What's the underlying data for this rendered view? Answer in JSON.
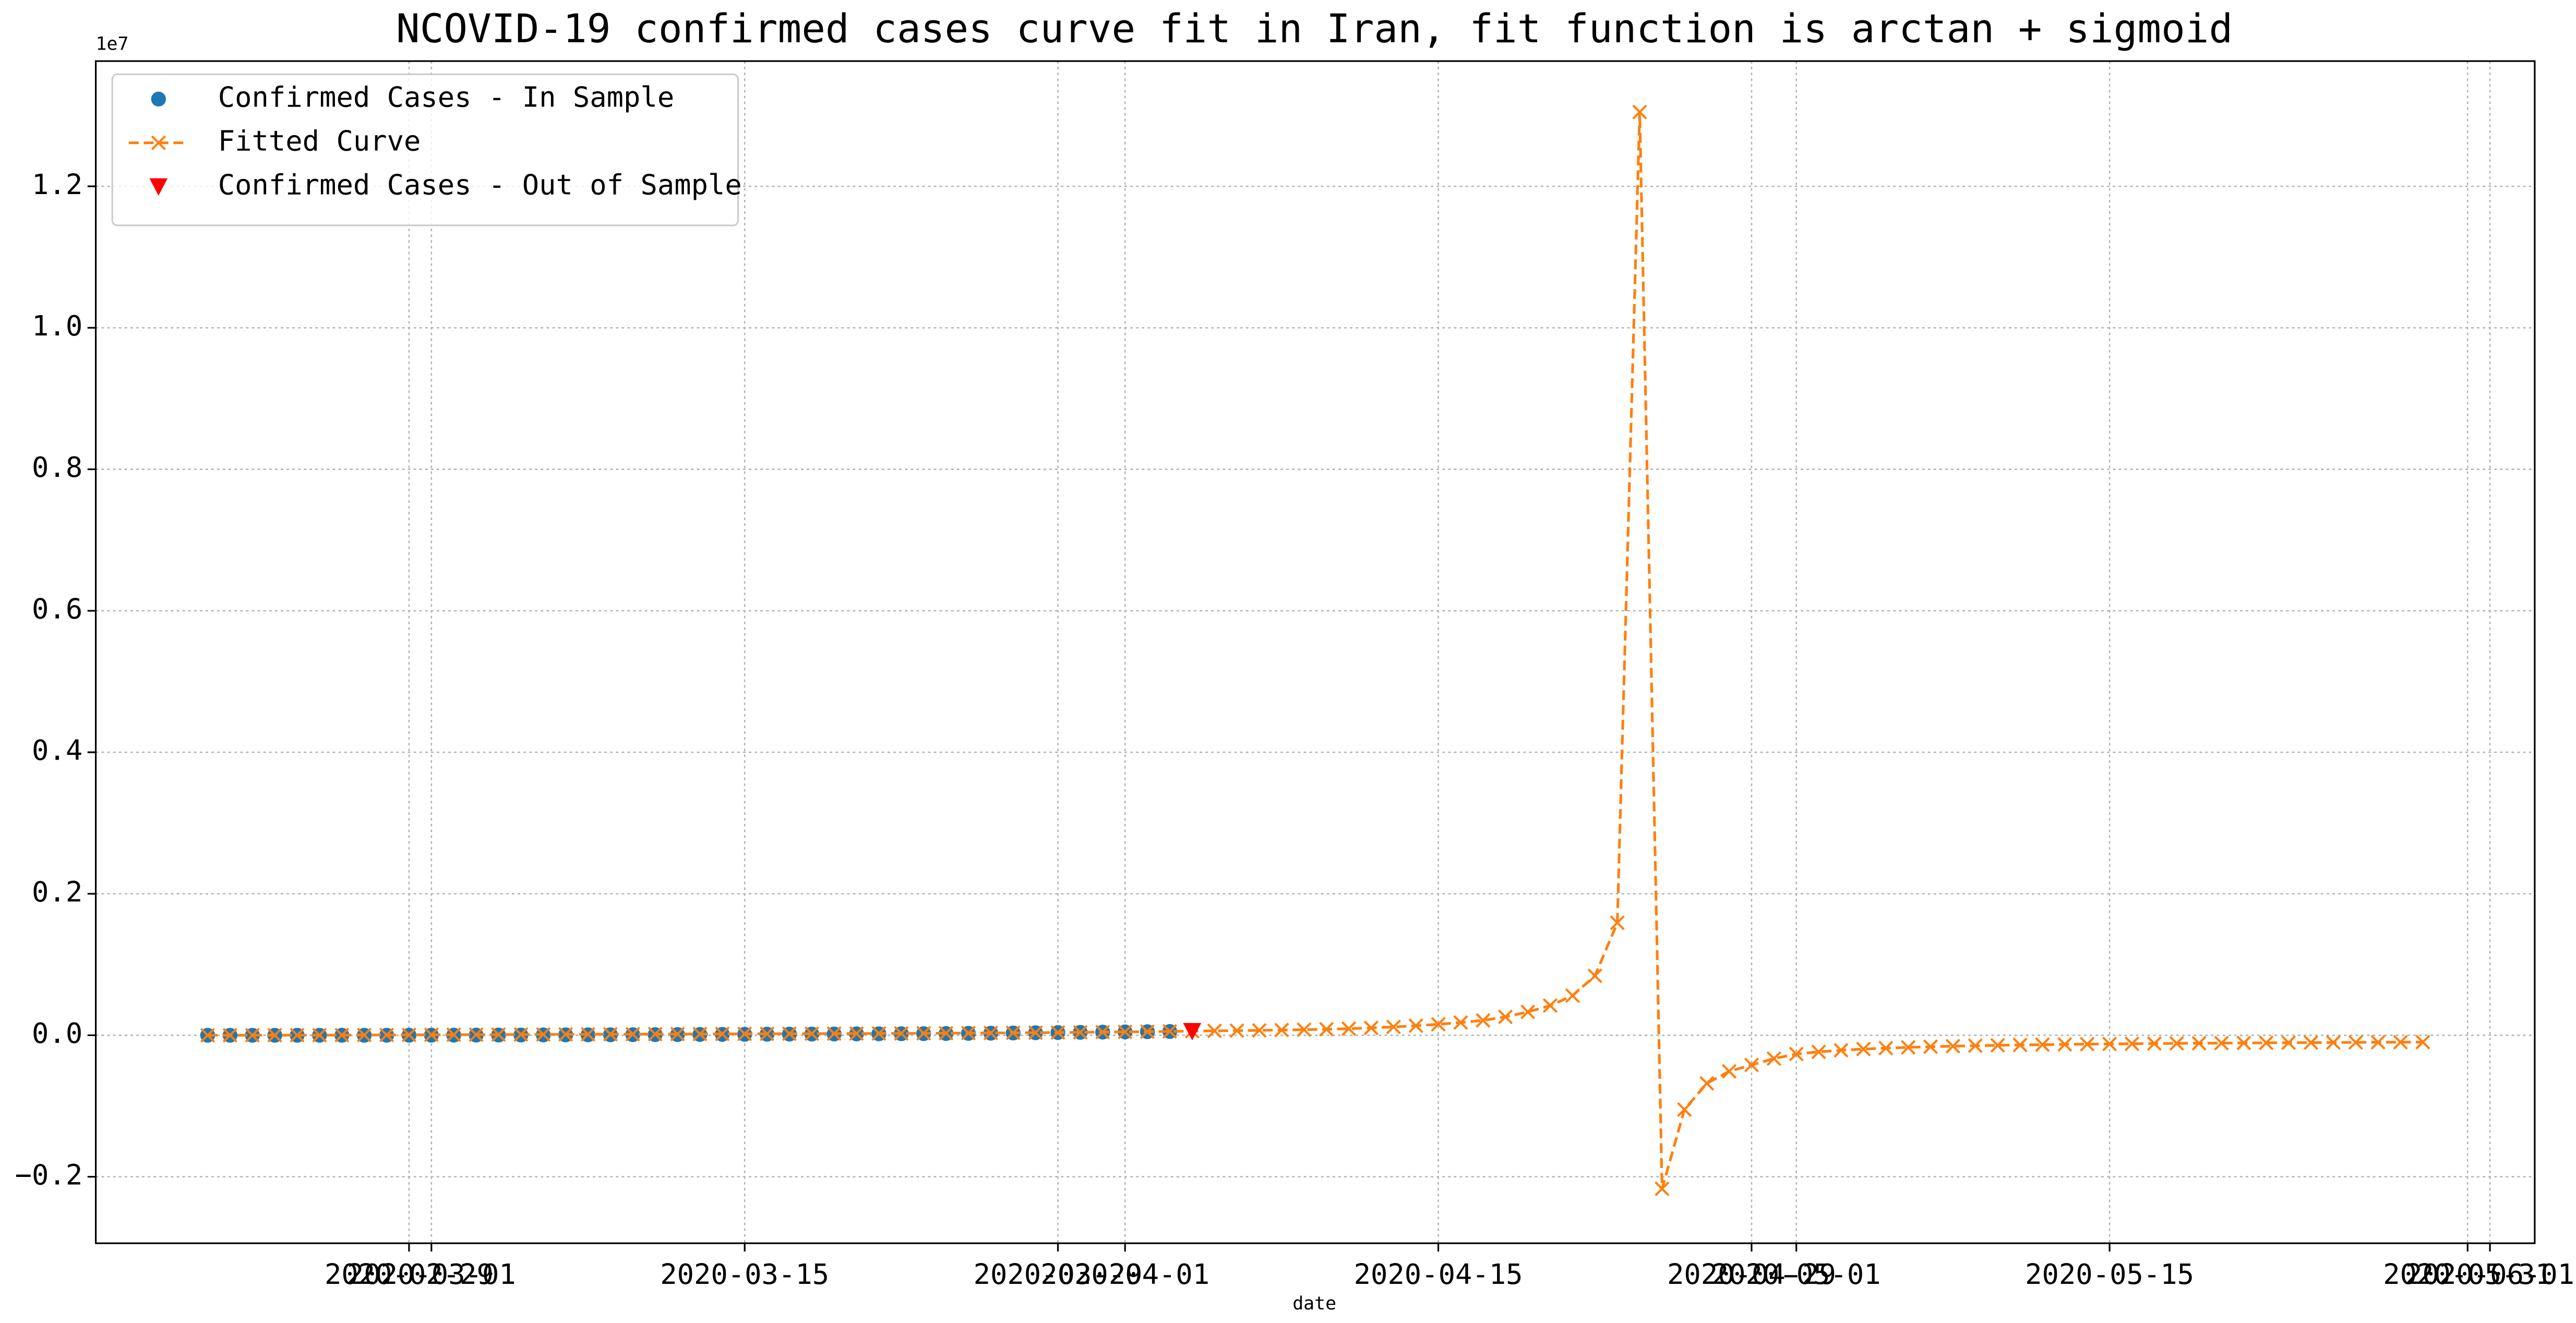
{
  "chart_data": {
    "type": "line",
    "title": "NCOVID-19 confirmed cases curve fit in Iran, fit function is arctan + sigmoid",
    "xlabel": "date",
    "y_offset_label": "1e7",
    "xlim": [
      "2020-02-15",
      "2020-06-03"
    ],
    "xticks": [
      "2020-02-29",
      "2020-03-01",
      "2020-03-15",
      "2020-03-29",
      "2020-04-01",
      "2020-04-15",
      "2020-04-29",
      "2020-05-01",
      "2020-05-15",
      "2020-05-31",
      "2020-06-01"
    ],
    "ylim": [
      -2940000,
      13770000
    ],
    "yticks": [
      {
        "value": -2000000,
        "label": "−0.2"
      },
      {
        "value": 0,
        "label": "0.0"
      },
      {
        "value": 2000000,
        "label": "0.2"
      },
      {
        "value": 4000000,
        "label": "0.4"
      },
      {
        "value": 6000000,
        "label": "0.6"
      },
      {
        "value": 8000000,
        "label": "0.8"
      },
      {
        "value": 10000000,
        "label": "1.0"
      },
      {
        "value": 12000000,
        "label": "1.2"
      }
    ],
    "grid": true,
    "legend": "upper left",
    "series": [
      {
        "name": "Confirmed Cases - In Sample",
        "color": "#1f77b4",
        "marker": "o",
        "linestyle": "none",
        "x": [
          "2020-02-20",
          "2020-02-21",
          "2020-02-22",
          "2020-02-23",
          "2020-02-24",
          "2020-02-25",
          "2020-02-26",
          "2020-02-27",
          "2020-02-28",
          "2020-02-29",
          "2020-03-01",
          "2020-03-02",
          "2020-03-03",
          "2020-03-04",
          "2020-03-05",
          "2020-03-06",
          "2020-03-07",
          "2020-03-08",
          "2020-03-09",
          "2020-03-10",
          "2020-03-11",
          "2020-03-12",
          "2020-03-13",
          "2020-03-14",
          "2020-03-15",
          "2020-03-16",
          "2020-03-17",
          "2020-03-18",
          "2020-03-19",
          "2020-03-20",
          "2020-03-21",
          "2020-03-22",
          "2020-03-23",
          "2020-03-24",
          "2020-03-25",
          "2020-03-26",
          "2020-03-27",
          "2020-03-28",
          "2020-03-29",
          "2020-03-30",
          "2020-03-31",
          "2020-04-01",
          "2020-04-02",
          "2020-04-03"
        ],
        "values": [
          5,
          18,
          28,
          43,
          61,
          95,
          139,
          245,
          388,
          593,
          978,
          1501,
          2336,
          2922,
          3513,
          4747,
          5823,
          6566,
          7161,
          8042,
          9000,
          10075,
          11364,
          12729,
          13938,
          14991,
          16169,
          17361,
          18407,
          19644,
          20610,
          21638,
          23049,
          24811,
          27017,
          29406,
          32332,
          35408,
          38309,
          41495,
          44605,
          47593,
          50468,
          53183
        ]
      },
      {
        "name": "Fitted Curve",
        "color": "#ff7f0e",
        "marker": "x",
        "linestyle": "dashed",
        "x": [
          "2020-02-20",
          "2020-02-21",
          "2020-02-22",
          "2020-02-23",
          "2020-02-24",
          "2020-02-25",
          "2020-02-26",
          "2020-02-27",
          "2020-02-28",
          "2020-02-29",
          "2020-03-01",
          "2020-03-02",
          "2020-03-03",
          "2020-03-04",
          "2020-03-05",
          "2020-03-06",
          "2020-03-07",
          "2020-03-08",
          "2020-03-09",
          "2020-03-10",
          "2020-03-11",
          "2020-03-12",
          "2020-03-13",
          "2020-03-14",
          "2020-03-15",
          "2020-03-16",
          "2020-03-17",
          "2020-03-18",
          "2020-03-19",
          "2020-03-20",
          "2020-03-21",
          "2020-03-22",
          "2020-03-23",
          "2020-03-24",
          "2020-03-25",
          "2020-03-26",
          "2020-03-27",
          "2020-03-28",
          "2020-03-29",
          "2020-03-30",
          "2020-03-31",
          "2020-04-01",
          "2020-04-02",
          "2020-04-03",
          "2020-04-04",
          "2020-04-05",
          "2020-04-06",
          "2020-04-07",
          "2020-04-08",
          "2020-04-09",
          "2020-04-10",
          "2020-04-11",
          "2020-04-12",
          "2020-04-13",
          "2020-04-14",
          "2020-04-15",
          "2020-04-16",
          "2020-04-17",
          "2020-04-18",
          "2020-04-19",
          "2020-04-20",
          "2020-04-21",
          "2020-04-22",
          "2020-04-23",
          "2020-04-24",
          "2020-04-25",
          "2020-04-26",
          "2020-04-27",
          "2020-04-28",
          "2020-04-29",
          "2020-04-30",
          "2020-05-01",
          "2020-05-02",
          "2020-05-03",
          "2020-05-04",
          "2020-05-05",
          "2020-05-06",
          "2020-05-07",
          "2020-05-08",
          "2020-05-09",
          "2020-05-10",
          "2020-05-11",
          "2020-05-12",
          "2020-05-13",
          "2020-05-14",
          "2020-05-15",
          "2020-05-16",
          "2020-05-17",
          "2020-05-18",
          "2020-05-19",
          "2020-05-20",
          "2020-05-21",
          "2020-05-22",
          "2020-05-23",
          "2020-05-24",
          "2020-05-25",
          "2020-05-26",
          "2020-05-27",
          "2020-05-28",
          "2020-05-29"
        ],
        "values": [
          100,
          200,
          400,
          700,
          1100,
          1700,
          2500,
          3400,
          4400,
          5500,
          6600,
          7700,
          8800,
          9800,
          10800,
          11800,
          12700,
          13600,
          14500,
          15300,
          16200,
          17000,
          17900,
          18700,
          19600,
          20500,
          21400,
          22300,
          23300,
          24300,
          25400,
          26600,
          27900,
          29300,
          30800,
          32500,
          34400,
          36500,
          38800,
          41400,
          44300,
          47500,
          51000,
          54900,
          58500,
          62000,
          65500,
          69500,
          74000,
          79000,
          85000,
          93000,
          104000,
          118000,
          135000,
          155000,
          180000,
          210000,
          260000,
          330000,
          420000,
          560000,
          840000,
          1590000,
          13050000,
          -2170000,
          -1050000,
          -680000,
          -510000,
          -420000,
          -330000,
          -265000,
          -235000,
          -212000,
          -195000,
          -182000,
          -171000,
          -162000,
          -154000,
          -148000,
          -142000,
          -137000,
          -133000,
          -129000,
          -126000,
          -123000,
          -120000,
          -117000,
          -115000,
          -113000,
          -111000,
          -109000,
          -107000,
          -105000,
          -104000,
          -102000,
          -101000,
          -99000,
          -98000,
          -97000
        ]
      },
      {
        "name": "Confirmed Cases - Out of Sample",
        "color": "#ff0000",
        "marker": "v",
        "linestyle": "none",
        "x": [
          "2020-04-04"
        ],
        "values": [
          55743
        ]
      }
    ]
  }
}
